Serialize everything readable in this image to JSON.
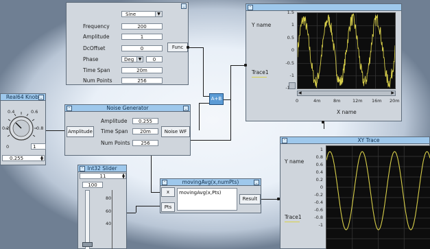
{
  "function_generator": {
    "function": "Sine",
    "rows": [
      {
        "label": "Frequency",
        "value": "200"
      },
      {
        "label": "Amplitude",
        "value": "1"
      },
      {
        "label": "DcOffset",
        "value": "0"
      },
      {
        "label": "Phase",
        "value": "0",
        "unit": "Deg"
      },
      {
        "label": "Time Span",
        "value": "20m"
      },
      {
        "label": "Num Points",
        "value": "256"
      }
    ],
    "output": "Func"
  },
  "noise_generator": {
    "title": "Noise Generator",
    "input": "Amplitude",
    "rows": [
      {
        "label": "Amplitude",
        "value": "0.255"
      },
      {
        "label": "Time Span",
        "value": "20m"
      },
      {
        "label": "Num Points",
        "value": "256"
      }
    ],
    "output": "Noise WF"
  },
  "knob": {
    "title": "Real64 Knob",
    "scale": [
      "0.4",
      "0.6",
      "0.2",
      "0.8",
      "0",
      "1"
    ],
    "value": "0.255"
  },
  "adder": {
    "label": "A+B"
  },
  "waveform_display": {
    "ylabel": "Y name",
    "xlabel": "X name",
    "trace": "Trace1",
    "y_ticks": [
      "1.5",
      "1",
      "0.5",
      "0",
      "-0.5",
      "-1",
      "-1.5"
    ],
    "x_ticks": [
      "0",
      "4m",
      "8m",
      "12m",
      "16m",
      "20m"
    ]
  },
  "int_slider": {
    "title": "Int32 Slider",
    "value": "11",
    "ticks": [
      "100",
      "80",
      "60",
      "40"
    ]
  },
  "formula": {
    "title": "movingAvg(x,numPts)",
    "expression": "movingAvg(x,Pts)",
    "inputs": [
      "x",
      "Pts"
    ],
    "output": "Result"
  },
  "xy_trace": {
    "title": "XY Trace",
    "ylabel": "Y name",
    "trace": "Trace1",
    "y_ticks": [
      "1",
      "0.8",
      "0.6",
      "0.4",
      "0.2",
      "0",
      "-0.2",
      "-0.4",
      "-0.6",
      "-0.8",
      "-1"
    ]
  },
  "chart_data": [
    {
      "type": "line",
      "ylabel": "Y name",
      "xlabel": "X name",
      "ylim": [
        -1.5,
        1.5
      ],
      "xlim": [
        0,
        0.02
      ],
      "x_ticks": [
        "0",
        "4m",
        "8m",
        "12m",
        "16m",
        "20m"
      ],
      "grid": true,
      "series": [
        {
          "name": "Trace1",
          "color": "#d9d04a",
          "frequency": 200,
          "amplitude": 1.25,
          "noise": 0.255
        }
      ]
    },
    {
      "type": "line",
      "ylabel": "Y name",
      "ylim": [
        -1,
        1
      ],
      "grid": true,
      "series": [
        {
          "name": "Trace1",
          "color": "#d9d04a",
          "frequency": 200,
          "amplitude": 0.95
        }
      ]
    }
  ],
  "colors": {
    "title_bar": "#9ec8ec",
    "panel": "#cfd5dc",
    "trace": "#d9d04a",
    "plot_bg": "#0d0d0d",
    "adder": "#5b9bd5"
  }
}
